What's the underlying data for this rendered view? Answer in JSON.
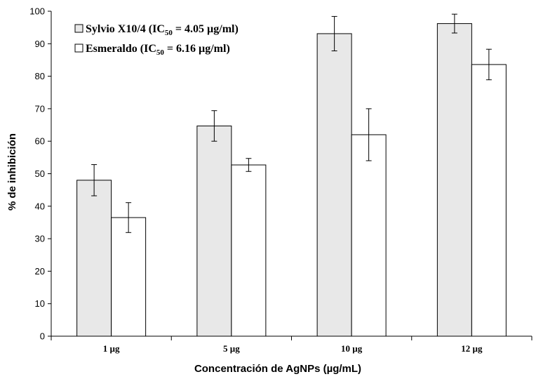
{
  "chart_data": {
    "type": "bar",
    "title": "",
    "xlabel": "Concentración de AgNPs (µg/mL)",
    "ylabel": "% de inhibición",
    "ylim": [
      0,
      100
    ],
    "yticks": [
      0,
      10,
      20,
      30,
      40,
      50,
      60,
      70,
      80,
      90,
      100
    ],
    "grid": false,
    "legend_position": "top-left",
    "categories": [
      "1 µg",
      "5 µg",
      "10 µg",
      "12 µg"
    ],
    "series": [
      {
        "name": "Sylvio X10/4",
        "legend_label": "Sylvio X10/4 (IC50 = 4.05 µg/ml)",
        "legend_prefix": "Sylvio X10/4 (IC",
        "legend_sub": "50",
        "legend_suffix": " = 4.05 µg/ml)",
        "color": "#e8e8e8",
        "values": [
          48.0,
          64.7,
          93.1,
          96.2
        ],
        "errors": [
          4.8,
          4.7,
          5.3,
          2.9
        ]
      },
      {
        "name": "Esmeraldo",
        "legend_label": "Esmeraldo  (IC50 = 6.16 µg/ml)",
        "legend_prefix": "Esmeraldo  (IC",
        "legend_sub": "50",
        "legend_suffix": " = 6.16 µg/ml)",
        "color": "#ffffff",
        "values": [
          36.5,
          52.7,
          62.0,
          83.6
        ],
        "errors": [
          4.6,
          2.0,
          8.0,
          4.7
        ]
      }
    ]
  }
}
